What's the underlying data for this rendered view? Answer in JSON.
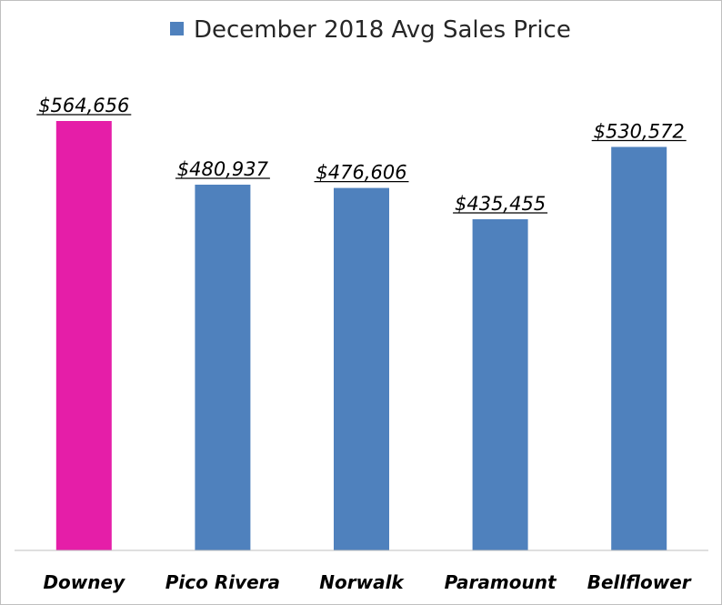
{
  "chart_data": {
    "type": "bar",
    "categories": [
      "Downey",
      "Pico Rivera",
      "Norwalk",
      "Paramount",
      "Bellflower"
    ],
    "series": [
      {
        "name": "December 2018 Avg Sales Price",
        "values": [
          564656,
          480937,
          476606,
          435455,
          530572
        ],
        "value_labels": [
          "$564,656",
          "$480,937",
          "$476,606",
          "$435,455",
          "$530,572"
        ]
      }
    ],
    "ylim": [
      0,
      564656
    ],
    "grid": false,
    "legend_position": "top",
    "colors": {
      "series": "#4f81bd",
      "highlight": "#e51ea8",
      "highlight_category": "Downey"
    }
  }
}
